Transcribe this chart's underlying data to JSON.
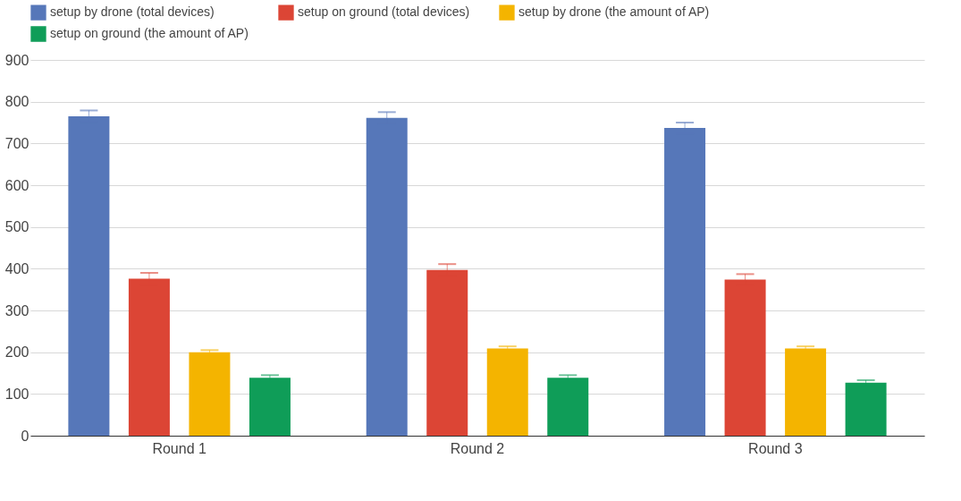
{
  "chart_data": {
    "type": "bar",
    "categories": [
      "Round 1",
      "Round 2",
      "Round 3"
    ],
    "series": [
      {
        "name": "setup by drone (total devices)",
        "color": "#5677b9",
        "values": [
          765,
          761,
          737
        ],
        "errors": [
          14,
          14,
          13
        ]
      },
      {
        "name": "setup on ground (total devices)",
        "color": "#dc4535",
        "values": [
          376,
          397,
          374
        ],
        "errors": [
          14,
          14,
          13
        ]
      },
      {
        "name": "setup by drone (the amount of AP)",
        "color": "#f4b400",
        "values": [
          200,
          209,
          209
        ],
        "errors": [
          5,
          5,
          5
        ]
      },
      {
        "name": "setup on ground (the amount of AP)",
        "color": "#0f9d58",
        "values": [
          139,
          139,
          127
        ],
        "errors": [
          6,
          6,
          6
        ]
      }
    ],
    "ylim": [
      0,
      900
    ],
    "yticks": [
      0,
      100,
      200,
      300,
      400,
      500,
      600,
      700,
      800,
      900
    ],
    "grid": "y",
    "legend": "top"
  }
}
